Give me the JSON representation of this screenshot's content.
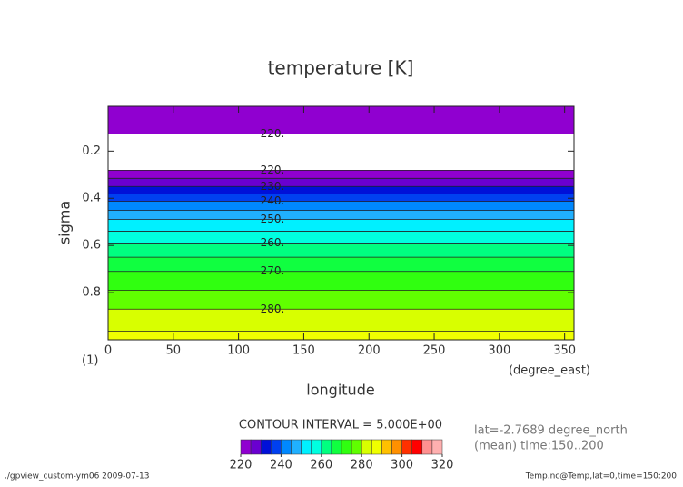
{
  "chart_data": {
    "type": "contour",
    "title": "temperature [K]",
    "x_label": "longitude",
    "x_unit": "(degree_east)",
    "y_label": "sigma",
    "figure_label": "(1)",
    "xlim": [
      0,
      357.2
    ],
    "xticks": [
      0,
      50,
      100,
      150,
      200,
      250,
      300,
      350
    ],
    "ylim": [
      1.0,
      0.01
    ],
    "yticks": [
      0.2,
      0.4,
      0.6,
      0.8
    ],
    "y": [
      0.01,
      0.127,
      0.2,
      0.281,
      0.35,
      0.413,
      0.49,
      0.59,
      0.71,
      0.87,
      1.0
    ],
    "values": [
      224,
      220,
      214,
      220,
      230,
      240,
      250,
      260,
      270,
      280,
      287
    ],
    "levels": [
      220,
      225,
      230,
      235,
      240,
      245,
      250,
      255,
      260,
      265,
      270,
      275,
      280,
      285,
      290,
      295,
      300,
      305,
      310,
      315,
      320
    ],
    "colors": [
      "#9000d0",
      "#6a00d0",
      "#0010d8",
      "#0040f0",
      "#0088ff",
      "#20b0ff",
      "#00f0ff",
      "#00ffe0",
      "#00ff80",
      "#10ff40",
      "#30ff10",
      "#60ff00",
      "#d8ff00",
      "#f0ff00",
      "#ffc000",
      "#ff9000",
      "#ff3000",
      "#ff0000",
      "#ff9090",
      "#ffb0b0"
    ],
    "contour_labels": [
      {
        "value": 220,
        "label": "220."
      },
      {
        "value": 220,
        "label": "220."
      },
      {
        "value": 230,
        "label": "230."
      },
      {
        "value": 240,
        "label": "240."
      },
      {
        "value": 250,
        "label": "250."
      },
      {
        "value": 260,
        "label": "260."
      },
      {
        "value": 270,
        "label": "270."
      },
      {
        "value": 280,
        "label": "280."
      }
    ],
    "colorbar_ticks": [
      220,
      240,
      260,
      280,
      300,
      320
    ],
    "contour_interval": "CONTOUR INTERVAL = 5.000E+00",
    "notes": [
      "lat=-2.7689 degree_north",
      "(mean) time:150..200"
    ],
    "footer_left": "./gpview_custom-ym06  2009-07-13",
    "footer_right": "Temp.nc@Temp,lat=0,time=150:200"
  }
}
